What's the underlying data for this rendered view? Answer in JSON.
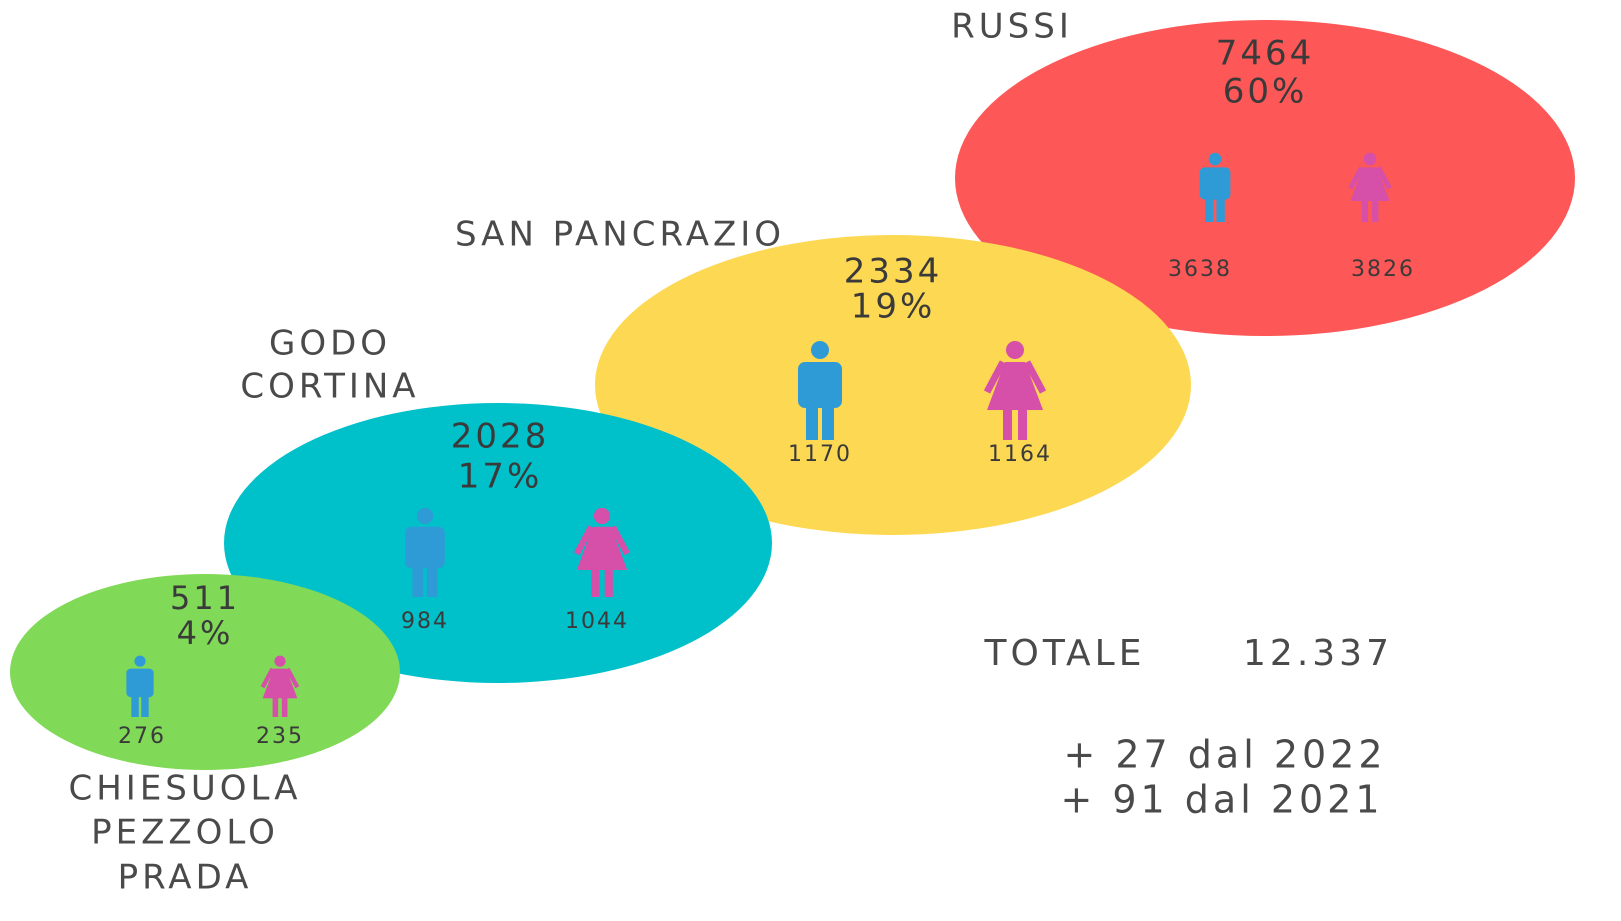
{
  "areas": [
    {
      "name": [
        "RUSSI"
      ],
      "total": "7464",
      "share": "60%",
      "male": "3638",
      "female": "3826"
    },
    {
      "name": [
        "SAN PANCRAZIO"
      ],
      "total": "2334",
      "share": "19%",
      "male": "1170",
      "female": "1164"
    },
    {
      "name": [
        "GODO",
        "CORTINA"
      ],
      "total": "2028",
      "share": "17%",
      "male": "984",
      "female": "1044"
    },
    {
      "name": [
        "CHIESUOLA",
        "PEZZOLO",
        "PRADA"
      ],
      "total": "511",
      "share": "4%",
      "male": "276",
      "female": "235"
    }
  ],
  "summary": {
    "label": "TOTALE",
    "value": "12.337",
    "changes": [
      "+ 27 dal 2022",
      "+ 91 dal 2021"
    ]
  }
}
